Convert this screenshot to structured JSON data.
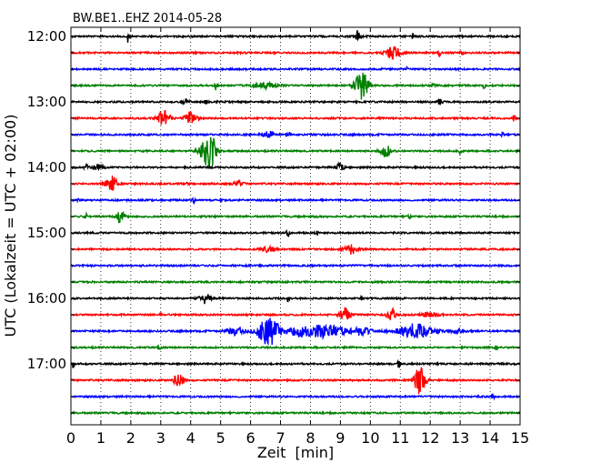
{
  "chart_data": {
    "type": "line",
    "title": "BW.BE1..EHZ 2014-05-28",
    "xlabel": "Zeit  [min]",
    "ylabel": "UTC (Lokalzeit = UTC + 02:00)",
    "xlim": [
      0,
      15
    ],
    "xticks": [
      "0",
      "1",
      "2",
      "3",
      "4",
      "5",
      "6",
      "7",
      "8",
      "9",
      "10",
      "11",
      "12",
      "13",
      "14",
      "15"
    ],
    "yticks": [
      "12:00",
      "13:00",
      "14:00",
      "15:00",
      "16:00",
      "17:00"
    ],
    "grid": "vertical-dotted",
    "trace_colors": [
      "#000000",
      "#ff0000",
      "#0000ff",
      "#008000"
    ],
    "traces": [
      {
        "start": "12:00",
        "events": [
          {
            "t": 1.9,
            "a": 6,
            "w": 0.03
          },
          {
            "t": 9.55,
            "a": 7,
            "w": 0.1
          },
          {
            "t": 11.4,
            "a": 4,
            "w": 0.03
          },
          {
            "t": 12.1,
            "a": 3,
            "w": 0.03
          }
        ]
      },
      {
        "start": "12:15",
        "events": [
          {
            "t": 10.75,
            "a": 8,
            "w": 0.22
          },
          {
            "t": 12.3,
            "a": 4,
            "w": 0.04
          },
          {
            "t": 13.05,
            "a": 4,
            "w": 0.04
          }
        ]
      },
      {
        "start": "12:30",
        "events": [
          {
            "t": 11.2,
            "a": 3,
            "w": 0.03
          }
        ]
      },
      {
        "start": "12:45",
        "events": [
          {
            "t": 4.85,
            "a": 5,
            "w": 0.05
          },
          {
            "t": 6.5,
            "a": 3,
            "w": 0.4
          },
          {
            "t": 9.7,
            "a": 16,
            "w": 0.22
          },
          {
            "t": 12.1,
            "a": 3,
            "w": 0.05
          },
          {
            "t": 13.8,
            "a": 3,
            "w": 0.04
          }
        ]
      },
      {
        "start": "13:00",
        "events": [
          {
            "t": 3.85,
            "a": 3,
            "w": 0.1
          },
          {
            "t": 4.5,
            "a": 3,
            "w": 0.05
          },
          {
            "t": 12.3,
            "a": 3,
            "w": 0.1
          }
        ]
      },
      {
        "start": "13:15",
        "events": [
          {
            "t": 3.1,
            "a": 9,
            "w": 0.2
          },
          {
            "t": 4.0,
            "a": 7,
            "w": 0.18
          },
          {
            "t": 14.8,
            "a": 3,
            "w": 0.05
          }
        ]
      },
      {
        "start": "13:30",
        "events": [
          {
            "t": 6.6,
            "a": 4,
            "w": 0.2
          },
          {
            "t": 7.3,
            "a": 3,
            "w": 0.04
          },
          {
            "t": 14.4,
            "a": 2,
            "w": 0.05
          }
        ]
      },
      {
        "start": "13:45",
        "events": [
          {
            "t": 4.6,
            "a": 22,
            "w": 0.24
          },
          {
            "t": 10.5,
            "a": 7,
            "w": 0.18
          },
          {
            "t": 13.0,
            "a": 4,
            "w": 0.04
          }
        ]
      },
      {
        "start": "14:00",
        "events": [
          {
            "t": 0.5,
            "a": 4,
            "w": 0.06
          },
          {
            "t": 9.0,
            "a": 7,
            "w": 0.1
          },
          {
            "t": 0.9,
            "a": 3,
            "w": 0.2
          }
        ]
      },
      {
        "start": "14:15",
        "events": [
          {
            "t": 1.35,
            "a": 9,
            "w": 0.18
          },
          {
            "t": 5.6,
            "a": 3,
            "w": 0.15
          },
          {
            "t": 3.8,
            "a": 2,
            "w": 0.1
          }
        ]
      },
      {
        "start": "14:30",
        "events": [
          {
            "t": 0.25,
            "a": 5,
            "w": 0.03
          },
          {
            "t": 4.1,
            "a": 3,
            "w": 0.05
          },
          {
            "t": 5.0,
            "a": 2,
            "w": 0.04
          }
        ]
      },
      {
        "start": "14:45",
        "events": [
          {
            "t": 1.65,
            "a": 9,
            "w": 0.12
          },
          {
            "t": 0.5,
            "a": 3,
            "w": 0.05
          },
          {
            "t": 11.3,
            "a": 4,
            "w": 0.04
          }
        ]
      },
      {
        "start": "15:00",
        "events": [
          {
            "t": 7.25,
            "a": 5,
            "w": 0.05
          },
          {
            "t": 8.2,
            "a": 4,
            "w": 0.04
          }
        ]
      },
      {
        "start": "15:15",
        "events": [
          {
            "t": 9.35,
            "a": 5,
            "w": 0.2
          },
          {
            "t": 6.6,
            "a": 3,
            "w": 0.2
          }
        ]
      },
      {
        "start": "15:30",
        "events": [
          {
            "t": 9.5,
            "a": 3,
            "w": 0.04
          }
        ]
      },
      {
        "start": "15:45",
        "events": []
      },
      {
        "start": "16:00",
        "events": [
          {
            "t": 4.5,
            "a": 6,
            "w": 0.18
          },
          {
            "t": 7.25,
            "a": 4,
            "w": 0.04
          },
          {
            "t": 9.7,
            "a": 3,
            "w": 0.04
          }
        ]
      },
      {
        "start": "16:15",
        "events": [
          {
            "t": 9.15,
            "a": 9,
            "w": 0.16
          },
          {
            "t": 10.7,
            "a": 7,
            "w": 0.14
          },
          {
            "t": 3.0,
            "a": 4,
            "w": 0.03
          },
          {
            "t": 12.0,
            "a": 3,
            "w": 0.25
          }
        ]
      },
      {
        "start": "16:30",
        "events": [
          {
            "t": 6.6,
            "a": 16,
            "w": 0.35
          },
          {
            "t": 8.5,
            "a": 7,
            "w": 0.7
          },
          {
            "t": 11.5,
            "a": 8,
            "w": 0.6
          },
          {
            "t": 9.7,
            "a": 4,
            "w": 0.3
          },
          {
            "t": 5.5,
            "a": 4,
            "w": 0.3
          },
          {
            "t": 7.6,
            "a": 5,
            "w": 0.3
          },
          {
            "t": 12.9,
            "a": 3,
            "w": 0.2
          }
        ]
      },
      {
        "start": "16:45",
        "events": [
          {
            "t": 2.95,
            "a": 3,
            "w": 0.06
          },
          {
            "t": 14.2,
            "a": 3,
            "w": 0.04
          }
        ]
      },
      {
        "start": "17:00",
        "events": [
          {
            "t": 0.08,
            "a": 5,
            "w": 0.03
          },
          {
            "t": 10.95,
            "a": 4,
            "w": 0.04
          }
        ]
      },
      {
        "start": "17:15",
        "events": [
          {
            "t": 3.6,
            "a": 8,
            "w": 0.16
          },
          {
            "t": 11.65,
            "a": 15,
            "w": 0.18
          }
        ]
      },
      {
        "start": "17:30",
        "events": [
          {
            "t": 14.1,
            "a": 4,
            "w": 0.03
          }
        ]
      },
      {
        "start": "17:45",
        "events": []
      }
    ]
  }
}
